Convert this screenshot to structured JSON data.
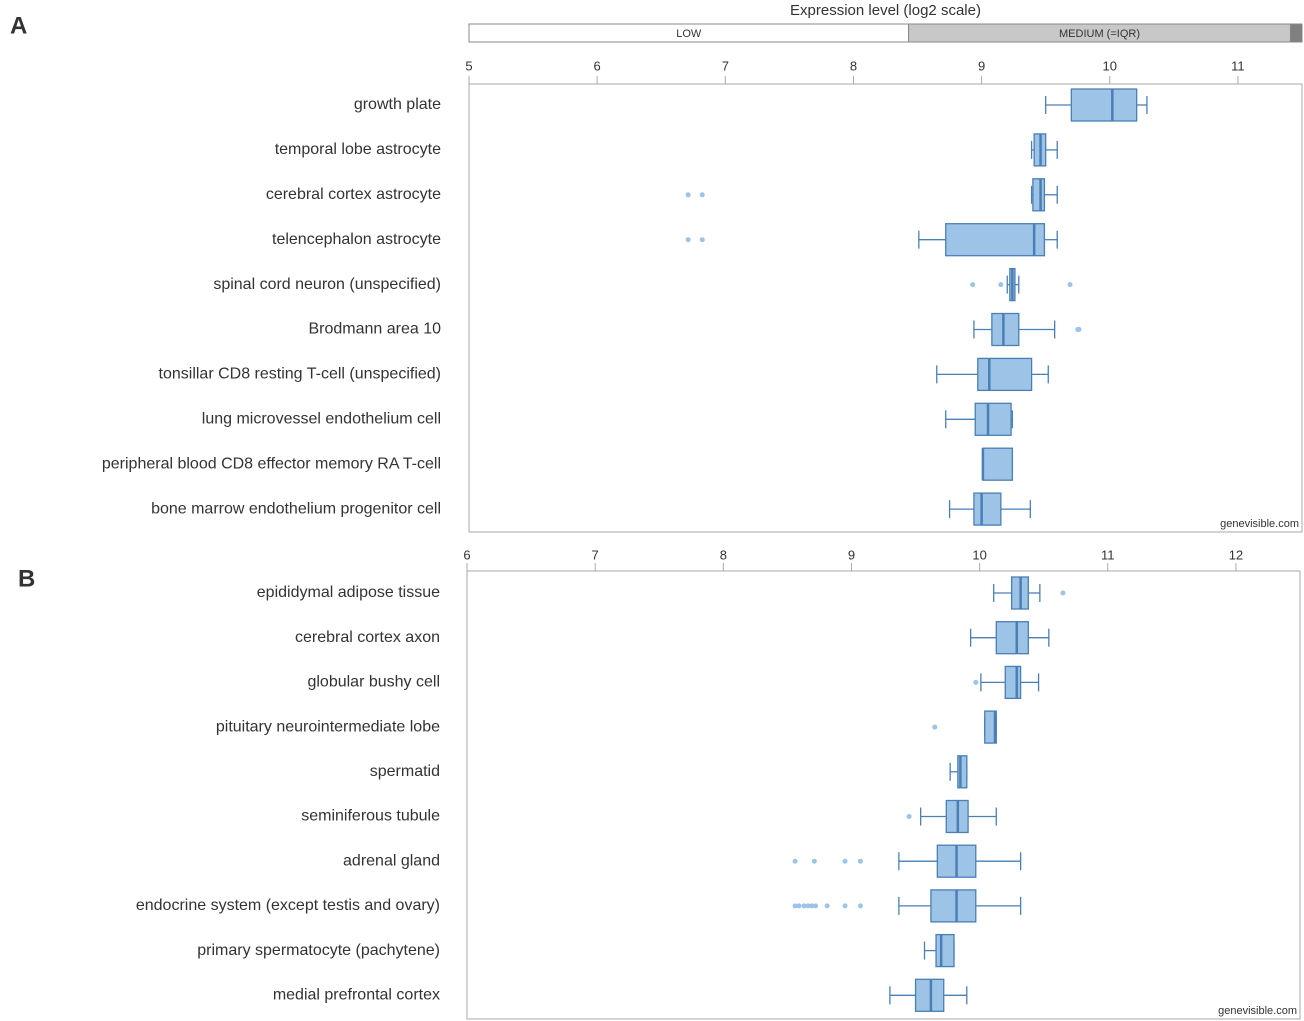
{
  "chart_data": [
    {
      "type": "box",
      "label": "A",
      "scale_title": "Expression level (log2 scale)",
      "bands": [
        {
          "label": "LOW",
          "start": 5,
          "end": 8.43,
          "color": "#ffffff"
        },
        {
          "label": "MEDIUM (=IQR)",
          "start": 8.43,
          "end": 11.41,
          "color": "#c8c8c8"
        },
        {
          "start": 11.41,
          "end": 11.5,
          "color": "#808080"
        }
      ],
      "xlim": [
        5,
        11.5
      ],
      "xticks": [
        5,
        6,
        7,
        8,
        9,
        10,
        11
      ],
      "color": "#9dc3e6",
      "stroke": "#4a7fb5",
      "watermark": "genevisible.com",
      "categories": [
        "growth plate",
        "temporal lobe astrocyte",
        "cerebral cortex astrocyte",
        "telencephalon astrocyte",
        "spinal cord neuron (unspecified)",
        "Brodmann area 10",
        "tonsillar CD8 resting T-cell (unspecified)",
        "lung microvessel endothelium cell",
        "peripheral blood CD8 effector memory RA T-cell",
        "bone marrow endothelium progenitor cell"
      ],
      "boxes": [
        {
          "whisker_low": 9.5,
          "q1": 9.7,
          "median": 10.02,
          "q3": 10.21,
          "whisker_high": 10.29,
          "outliers": []
        },
        {
          "whisker_low": 9.39,
          "q1": 9.41,
          "median": 9.46,
          "q3": 9.5,
          "whisker_high": 9.59,
          "outliers": []
        },
        {
          "whisker_low": 9.39,
          "q1": 9.4,
          "median": 9.46,
          "q3": 9.49,
          "whisker_high": 9.59,
          "outliers": [
            6.71,
            6.82
          ]
        },
        {
          "whisker_low": 8.51,
          "q1": 8.72,
          "median": 9.41,
          "q3": 9.49,
          "whisker_high": 9.59,
          "outliers": [
            6.71,
            6.82
          ]
        },
        {
          "whisker_low": 9.2,
          "q1": 9.22,
          "median": 9.24,
          "q3": 9.26,
          "whisker_high": 9.29,
          "outliers": [
            8.93,
            9.15,
            9.69
          ]
        },
        {
          "whisker_low": 8.94,
          "q1": 9.08,
          "median": 9.17,
          "q3": 9.29,
          "whisker_high": 9.57,
          "outliers": [
            9.75,
            9.76
          ]
        },
        {
          "whisker_low": 8.65,
          "q1": 8.97,
          "median": 9.06,
          "q3": 9.39,
          "whisker_high": 9.52,
          "outliers": []
        },
        {
          "whisker_low": 8.72,
          "q1": 8.95,
          "median": 9.05,
          "q3": 9.23,
          "whisker_high": 9.24,
          "outliers": []
        },
        {
          "whisker_low": 9.01,
          "q1": 9.01,
          "median": 9.01,
          "q3": 9.24,
          "whisker_high": 9.24,
          "outliers": []
        },
        {
          "whisker_low": 8.75,
          "q1": 8.94,
          "median": 9.0,
          "q3": 9.15,
          "whisker_high": 9.38,
          "outliers": []
        }
      ]
    },
    {
      "type": "box",
      "label": "B",
      "xlim": [
        6,
        12.5
      ],
      "xticks": [
        6,
        7,
        8,
        9,
        10,
        11,
        12
      ],
      "color": "#9dc3e6",
      "stroke": "#4a7fb5",
      "watermark": "genevisible.com",
      "categories": [
        "epididymal adipose tissue",
        "cerebral cortex axon",
        "globular bushy cell",
        "pituitary neurointermediate lobe",
        "spermatid",
        "seminiferous tubule",
        "adrenal gland",
        "endocrine system (except testis and ovary)",
        "primary spermatocyte (pachytene)",
        "medial prefrontal cortex"
      ],
      "boxes": [
        {
          "whisker_low": 10.11,
          "q1": 10.25,
          "median": 10.32,
          "q3": 10.38,
          "whisker_high": 10.47,
          "outliers": [
            10.65
          ]
        },
        {
          "whisker_low": 9.93,
          "q1": 10.13,
          "median": 10.29,
          "q3": 10.38,
          "whisker_high": 10.54,
          "outliers": []
        },
        {
          "whisker_low": 10.01,
          "q1": 10.2,
          "median": 10.29,
          "q3": 10.32,
          "whisker_high": 10.46,
          "outliers": [
            9.97
          ]
        },
        {
          "whisker_low": 10.04,
          "q1": 10.04,
          "median": 10.12,
          "q3": 10.13,
          "whisker_high": 10.13,
          "outliers": [
            9.65
          ]
        },
        {
          "whisker_low": 9.77,
          "q1": 9.83,
          "median": 9.85,
          "q3": 9.9,
          "whisker_high": 9.9,
          "outliers": []
        },
        {
          "whisker_low": 9.54,
          "q1": 9.74,
          "median": 9.83,
          "q3": 9.91,
          "whisker_high": 10.13,
          "outliers": [
            9.45
          ]
        },
        {
          "whisker_low": 9.37,
          "q1": 9.67,
          "median": 9.82,
          "q3": 9.97,
          "whisker_high": 10.32,
          "outliers": [
            8.56,
            8.71,
            8.95,
            9.07
          ]
        },
        {
          "whisker_low": 9.37,
          "q1": 9.62,
          "median": 9.82,
          "q3": 9.97,
          "whisker_high": 10.32,
          "outliers": [
            8.56,
            8.59,
            8.63,
            8.66,
            8.69,
            8.72,
            8.81,
            8.95,
            9.07
          ]
        },
        {
          "whisker_low": 9.57,
          "q1": 9.66,
          "median": 9.7,
          "q3": 9.8,
          "whisker_high": 9.8,
          "outliers": []
        },
        {
          "whisker_low": 9.3,
          "q1": 9.5,
          "median": 9.62,
          "q3": 9.72,
          "whisker_high": 9.9,
          "outliers": []
        }
      ]
    }
  ]
}
